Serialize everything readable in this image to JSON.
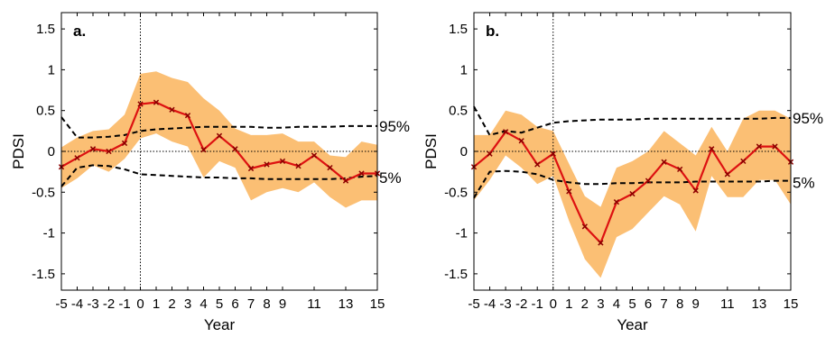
{
  "chart_data": [
    {
      "type": "line",
      "panel_label": "a.",
      "xlabel": "Year",
      "ylabel": "PDSI",
      "xlim": [
        -5,
        15
      ],
      "ylim": [
        -1.7,
        1.7
      ],
      "x": [
        -5,
        -4,
        -3,
        -2,
        -1,
        0,
        1,
        2,
        3,
        4,
        5,
        6,
        7,
        8,
        9,
        10,
        11,
        12,
        13,
        14,
        15
      ],
      "x_tick_labels": [
        "-5",
        "-4",
        "-3",
        "-2",
        "-1",
        "0",
        "1",
        "2",
        "3",
        "4",
        "5",
        "6",
        "7",
        "8",
        "9",
        "11",
        "13",
        "15"
      ],
      "x_tick_values": [
        -5,
        -4,
        -3,
        -2,
        -1,
        0,
        1,
        2,
        3,
        4,
        5,
        6,
        7,
        8,
        9,
        11,
        13,
        15
      ],
      "y_ticks": [
        1.5,
        1,
        0.5,
        0,
        -0.5,
        -1,
        -1.5
      ],
      "y_tick_labels": [
        "1.5",
        "1",
        "0.5",
        "0",
        "-0.5",
        "-1",
        "-1.5"
      ],
      "series": [
        {
          "values": [
            -0.19,
            -0.08,
            0.03,
            0.0,
            0.1,
            0.58,
            0.6,
            0.51,
            0.44,
            0.02,
            0.19,
            0.03,
            -0.21,
            -0.16,
            -0.12,
            -0.18,
            -0.05,
            -0.2,
            -0.36,
            -0.27,
            -0.27
          ]
        }
      ],
      "band_upper": [
        0.05,
        0.17,
        0.25,
        0.27,
        0.45,
        0.95,
        0.98,
        0.9,
        0.85,
        0.65,
        0.5,
        0.28,
        0.2,
        0.2,
        0.22,
        0.12,
        0.12,
        -0.05,
        -0.07,
        0.12,
        0.08
      ],
      "band_lower": [
        -0.45,
        -0.33,
        -0.17,
        -0.25,
        -0.09,
        0.16,
        0.22,
        0.12,
        0.06,
        -0.32,
        -0.12,
        -0.2,
        -0.6,
        -0.5,
        -0.45,
        -0.5,
        -0.38,
        -0.56,
        -0.69,
        -0.6,
        -0.6
      ],
      "p95": [
        0.42,
        0.17,
        0.17,
        0.18,
        0.2,
        0.25,
        0.27,
        0.28,
        0.29,
        0.3,
        0.3,
        0.3,
        0.3,
        0.29,
        0.29,
        0.3,
        0.3,
        0.3,
        0.31,
        0.31,
        0.31
      ],
      "p5": [
        -0.43,
        -0.2,
        -0.17,
        -0.18,
        -0.22,
        -0.28,
        -0.29,
        -0.3,
        -0.31,
        -0.32,
        -0.32,
        -0.33,
        -0.33,
        -0.34,
        -0.34,
        -0.34,
        -0.34,
        -0.34,
        -0.33,
        -0.31,
        -0.3
      ],
      "p95_label": "95%",
      "p5_label": "5%",
      "colors": {
        "line": "#dd1111",
        "band": "#fbbf74",
        "dashed": "#000000"
      }
    },
    {
      "type": "line",
      "panel_label": "b.",
      "xlabel": "Year",
      "ylabel": "PDSI",
      "xlim": [
        -5,
        15
      ],
      "ylim": [
        -1.7,
        1.7
      ],
      "x": [
        -5,
        -4,
        -3,
        -2,
        -1,
        0,
        1,
        2,
        3,
        4,
        5,
        6,
        7,
        8,
        9,
        10,
        11,
        12,
        13,
        14,
        15
      ],
      "x_tick_labels": [
        "-5",
        "-4",
        "-3",
        "-2",
        "-1",
        "0",
        "1",
        "2",
        "3",
        "4",
        "5",
        "6",
        "7",
        "8",
        "9",
        "11",
        "13",
        "15"
      ],
      "x_tick_values": [
        -5,
        -4,
        -3,
        -2,
        -1,
        0,
        1,
        2,
        3,
        4,
        5,
        6,
        7,
        8,
        9,
        11,
        13,
        15
      ],
      "y_ticks": [
        1.5,
        1,
        0.5,
        0,
        -0.5,
        -1,
        -1.5
      ],
      "y_tick_labels": [
        "1.5",
        "1",
        "0.5",
        "0",
        "-0.5",
        "-1",
        "-1.5"
      ],
      "series": [
        {
          "values": [
            -0.19,
            -0.03,
            0.24,
            0.13,
            -0.16,
            -0.03,
            -0.49,
            -0.92,
            -1.12,
            -0.62,
            -0.52,
            -0.36,
            -0.13,
            -0.22,
            -0.48,
            0.03,
            -0.28,
            -0.12,
            0.06,
            0.06,
            -0.13
          ]
        }
      ],
      "band_upper": [
        0.2,
        0.2,
        0.5,
        0.45,
        0.3,
        0.25,
        -0.15,
        -0.55,
        -0.68,
        -0.2,
        -0.12,
        0.0,
        0.25,
        0.1,
        -0.05,
        0.3,
        0.0,
        0.4,
        0.5,
        0.5,
        0.4
      ],
      "band_lower": [
        -0.6,
        -0.35,
        -0.05,
        -0.2,
        -0.4,
        -0.3,
        -0.85,
        -1.32,
        -1.55,
        -1.05,
        -0.95,
        -0.75,
        -0.55,
        -0.65,
        -0.98,
        -0.3,
        -0.56,
        -0.56,
        -0.35,
        -0.35,
        -0.65
      ],
      "p95": [
        0.55,
        0.2,
        0.25,
        0.23,
        0.29,
        0.35,
        0.37,
        0.38,
        0.39,
        0.39,
        0.39,
        0.4,
        0.4,
        0.4,
        0.4,
        0.4,
        0.4,
        0.4,
        0.4,
        0.41,
        0.41
      ],
      "p5": [
        -0.57,
        -0.25,
        -0.24,
        -0.25,
        -0.28,
        -0.35,
        -0.38,
        -0.4,
        -0.4,
        -0.39,
        -0.39,
        -0.38,
        -0.38,
        -0.38,
        -0.37,
        -0.37,
        -0.37,
        -0.37,
        -0.37,
        -0.36,
        -0.36
      ],
      "p95_label": "95%",
      "p5_label": "5%",
      "colors": {
        "line": "#dd1111",
        "band": "#fbbf74",
        "dashed": "#000000"
      }
    }
  ]
}
